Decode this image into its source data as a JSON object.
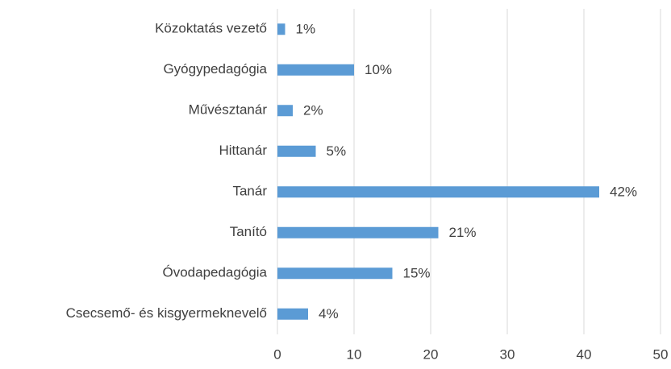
{
  "chart_data": {
    "type": "barh",
    "categories": [
      "Közoktatás vezető",
      "Gyógypedagógia",
      "Művésztanár",
      "Hittanár",
      "Tanár",
      "Tanító",
      "Óvodapedagógia",
      "Csecsemő- és kisgyermeknevelő"
    ],
    "values": [
      1,
      10,
      2,
      5,
      42,
      21,
      15,
      4
    ],
    "value_labels": [
      "1%",
      "10%",
      "2%",
      "5%",
      "42%",
      "21%",
      "15%",
      "4%"
    ],
    "color": "#5b9bd5",
    "xlim": [
      0,
      50
    ],
    "xticks": [
      0,
      10,
      20,
      30,
      40,
      50
    ],
    "grid": true
  }
}
